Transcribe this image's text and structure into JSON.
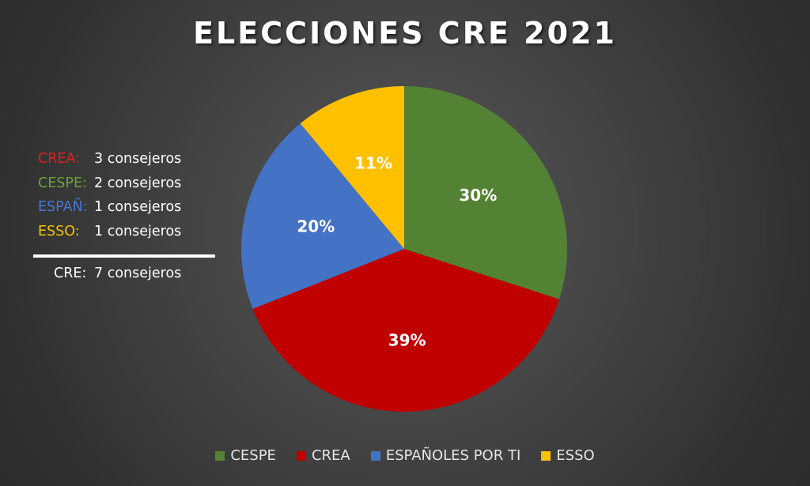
{
  "chart_data": {
    "type": "pie",
    "title": "ELECCIONES CRE 2021",
    "categories": [
      "CESPE",
      "CREA",
      "ESPAÑOLES POR TI",
      "ESSO"
    ],
    "values": [
      30,
      39,
      20,
      11
    ],
    "labels": [
      "30%",
      "39%",
      "20%",
      "11%"
    ],
    "colors": [
      "#548235",
      "#c00000",
      "#4472c4",
      "#ffc000"
    ],
    "start_angle_deg": 0,
    "direction": "clockwise",
    "legend_position": "bottom"
  },
  "seats": {
    "items": [
      {
        "party": "CREA:",
        "count": "3 consejeros"
      },
      {
        "party": "CESPE:",
        "count": "2 consejeros"
      },
      {
        "party": "ESPAÑ:",
        "count": "1 consejeros"
      },
      {
        "party": "ESSO:",
        "count": "1 consejeros"
      }
    ],
    "total": {
      "party": "CRE:",
      "count": "7 consejeros"
    }
  }
}
